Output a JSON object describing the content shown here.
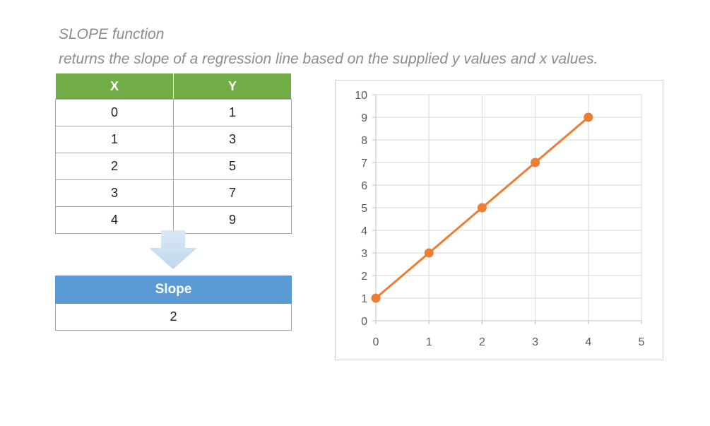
{
  "header": {
    "title": "SLOPE function",
    "description": "returns the slope of a regression line based on the supplied y values and x values."
  },
  "data_table": {
    "headers": [
      "X",
      "Y"
    ],
    "rows": [
      [
        "0",
        "1"
      ],
      [
        "1",
        "3"
      ],
      [
        "2",
        "5"
      ],
      [
        "3",
        "7"
      ],
      [
        "4",
        "9"
      ]
    ]
  },
  "result_table": {
    "header": "Slope",
    "value": "2"
  },
  "colors": {
    "table_header": "#70ad47",
    "result_header": "#5b9bd5",
    "series": "#ed7d31",
    "arrow": "#bdd7ee"
  },
  "icons": {
    "arrow": "down-arrow-icon"
  },
  "chart_data": {
    "type": "scatter",
    "x": [
      0,
      1,
      2,
      3,
      4
    ],
    "series": [
      {
        "values": [
          1,
          3,
          5,
          7,
          9
        ],
        "color": "#ed7d31",
        "line": true,
        "markers": true
      }
    ],
    "xlim": [
      0,
      5
    ],
    "ylim": [
      0,
      10
    ],
    "x_ticks": [
      "0",
      "1",
      "2",
      "3",
      "4",
      "5"
    ],
    "y_ticks": [
      "0",
      "1",
      "2",
      "3",
      "4",
      "5",
      "6",
      "7",
      "8",
      "9",
      "10"
    ],
    "grid": true,
    "legend": "none",
    "title": "",
    "xlabel": "",
    "ylabel": ""
  }
}
